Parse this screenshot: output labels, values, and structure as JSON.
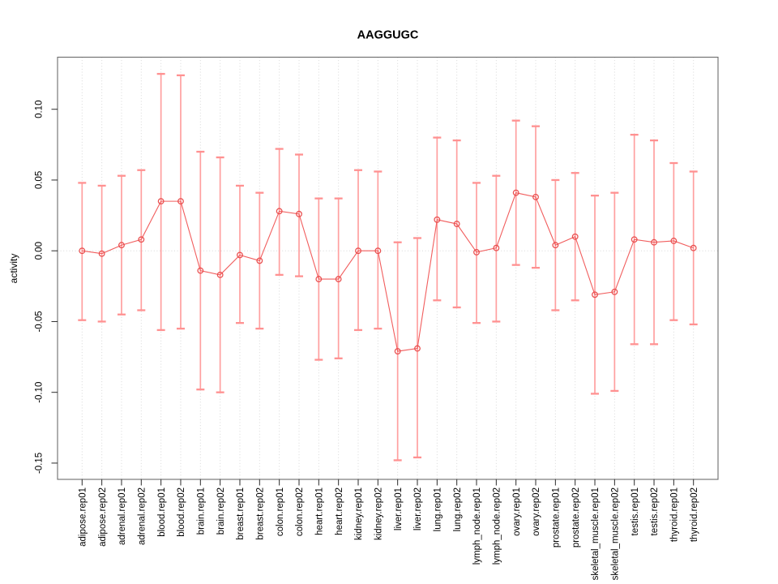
{
  "chart_data": {
    "type": "line",
    "title": "AAGGUGC",
    "xlabel": "",
    "ylabel": "activity",
    "legend": "none",
    "marker": "open-circle",
    "grid": {
      "vertical": "dotted-per-category",
      "zero_line": "dotted"
    },
    "categories": [
      "adipose.rep01",
      "adipose.rep02",
      "adrenal.rep01",
      "adrenal.rep02",
      "blood.rep01",
      "blood.rep02",
      "brain.rep01",
      "brain.rep02",
      "breast.rep01",
      "breast.rep02",
      "colon.rep01",
      "colon.rep02",
      "heart.rep01",
      "heart.rep02",
      "kidney.rep01",
      "kidney.rep02",
      "liver.rep01",
      "liver.rep02",
      "lung.rep01",
      "lung.rep02",
      "lymph_node.rep01",
      "lymph_node.rep02",
      "ovary.rep01",
      "ovary.rep02",
      "prostate.rep01",
      "prostate.rep02",
      "skeletal_muscle.rep01",
      "skeletal_muscle.rep02",
      "testis.rep01",
      "testis.rep02",
      "thyroid.rep01",
      "thyroid.rep02"
    ],
    "series": [
      {
        "name": "activity",
        "values": [
          0.0,
          -0.002,
          0.004,
          0.008,
          0.035,
          0.035,
          -0.014,
          -0.017,
          -0.003,
          -0.007,
          0.028,
          0.026,
          -0.02,
          -0.02,
          0.0,
          0.0,
          -0.071,
          -0.069,
          0.022,
          0.019,
          -0.001,
          0.002,
          0.041,
          0.038,
          0.004,
          0.01,
          -0.031,
          -0.029,
          0.008,
          0.006,
          0.007,
          0.002
        ]
      },
      {
        "name": "error_upper",
        "values": [
          0.048,
          0.046,
          0.053,
          0.057,
          0.125,
          0.124,
          0.07,
          0.066,
          0.046,
          0.041,
          0.072,
          0.068,
          0.037,
          0.037,
          0.057,
          0.056,
          0.006,
          0.009,
          0.08,
          0.078,
          0.048,
          0.053,
          0.092,
          0.088,
          0.05,
          0.055,
          0.039,
          0.041,
          0.082,
          0.078,
          0.062,
          0.056
        ]
      },
      {
        "name": "error_lower",
        "values": [
          -0.049,
          -0.05,
          -0.045,
          -0.042,
          -0.056,
          -0.055,
          -0.098,
          -0.1,
          -0.051,
          -0.055,
          -0.017,
          -0.018,
          -0.077,
          -0.076,
          -0.056,
          -0.055,
          -0.148,
          -0.146,
          -0.035,
          -0.04,
          -0.051,
          -0.05,
          -0.01,
          -0.012,
          -0.042,
          -0.035,
          -0.101,
          -0.099,
          -0.066,
          -0.066,
          -0.049,
          -0.052
        ]
      }
    ],
    "yticks": {
      "values": [
        0.1,
        0.05,
        0.0,
        -0.05,
        -0.1,
        -0.15
      ],
      "labels": [
        "0.10",
        "0.05",
        "0.00",
        "-0.05",
        "-0.10",
        "-0.15"
      ]
    },
    "ylim": [
      -0.1615,
      0.1368
    ],
    "colors": {
      "errorbar": "#ffa0a0",
      "errorbar_cap": "#ff9191",
      "line": "#f15d5d",
      "marker": "#e94f4f",
      "grid": "#d8d8d8",
      "box": "#6b6b6b",
      "text": "#000000"
    }
  }
}
